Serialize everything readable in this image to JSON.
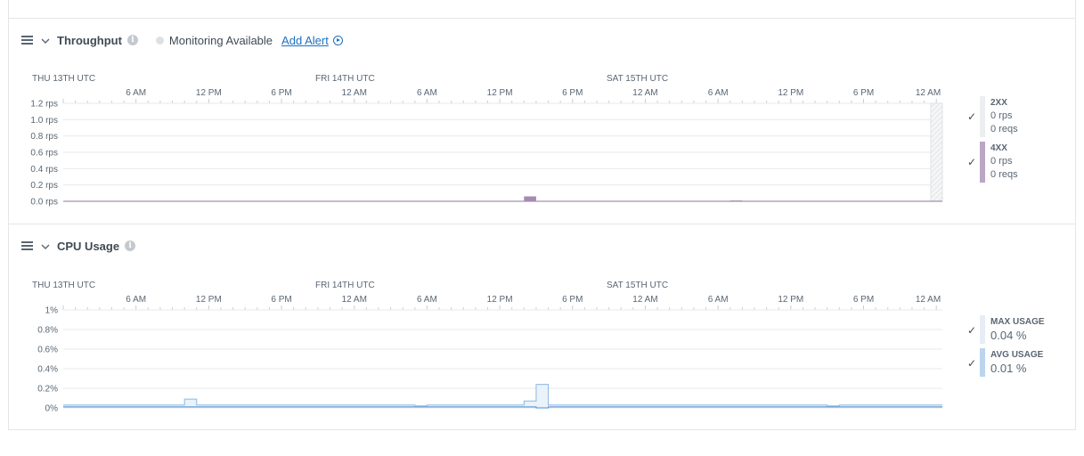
{
  "throughput": {
    "title": "Throughput",
    "monitoring_label": "Monitoring Available",
    "add_alert_label": "Add Alert",
    "legend": [
      {
        "name": "2XX",
        "rate": "0 rps",
        "reqs": "0 reqs",
        "color": "#eceef1"
      },
      {
        "name": "4XX",
        "rate": "0 rps",
        "reqs": "0 reqs",
        "color": "#bba6c4"
      }
    ]
  },
  "cpu": {
    "title": "CPU Usage",
    "legend": [
      {
        "name": "MAX USAGE",
        "value": "0.04 %",
        "color": "#e6edf5"
      },
      {
        "name": "AVG USAGE",
        "value": "0.01 %",
        "color": "#bcd5ee"
      }
    ]
  },
  "chart_data": [
    {
      "type": "bar",
      "x_day_labels": [
        "THU 13TH UTC",
        "FRI 14TH UTC",
        "SAT 15TH UTC"
      ],
      "x_time_labels": [
        "6 AM",
        "12 PM",
        "6 PM",
        "12 AM",
        "6 AM",
        "12 PM",
        "6 PM",
        "12 AM",
        "6 AM",
        "12 PM",
        "6 PM",
        "12 AM"
      ],
      "y_tick_labels": [
        "1.2 rps",
        "1.0 rps",
        "0.8 rps",
        "0.6 rps",
        "0.4 rps",
        "0.2 rps",
        "0.0 rps"
      ],
      "ylim": [
        0,
        1.2
      ],
      "series": [
        {
          "name": "2XX",
          "color": "#eceef1",
          "points": []
        },
        {
          "name": "4XX",
          "color": "#a58bb3",
          "points": [
            {
              "t": 38.5,
              "v": 0.06
            },
            {
              "t": 55.5,
              "v": 0.01
            }
          ]
        }
      ],
      "grid": true
    },
    {
      "type": "area",
      "x_day_labels": [
        "THU 13TH UTC",
        "FRI 14TH UTC",
        "SAT 15TH UTC"
      ],
      "x_time_labels": [
        "6 AM",
        "12 PM",
        "6 PM",
        "12 AM",
        "6 AM",
        "12 PM",
        "6 PM",
        "12 AM",
        "6 AM",
        "12 PM",
        "6 PM",
        "12 AM"
      ],
      "y_tick_labels": [
        "1%",
        "0.8%",
        "0.6%",
        "0.4%",
        "0.2%",
        "0%"
      ],
      "ylim": [
        0,
        1
      ],
      "series": [
        {
          "name": "MAX USAGE",
          "color": "#d8e6f4",
          "points": [
            [
              0,
              0.03
            ],
            [
              10,
              0.03
            ],
            [
              10,
              0.09
            ],
            [
              11,
              0.09
            ],
            [
              11,
              0.03
            ],
            [
              29,
              0.03
            ],
            [
              29,
              0.02
            ],
            [
              30,
              0.02
            ],
            [
              30,
              0.03
            ],
            [
              38,
              0.03
            ],
            [
              38,
              0.07
            ],
            [
              39,
              0.07
            ],
            [
              39,
              0.24
            ],
            [
              40,
              0.24
            ],
            [
              40,
              0.03
            ],
            [
              63,
              0.03
            ],
            [
              63,
              0.02
            ],
            [
              64,
              0.02
            ],
            [
              64,
              0.03
            ],
            [
              72.5,
              0.03
            ]
          ]
        },
        {
          "name": "AVG USAGE",
          "color": "#6ea2d6",
          "points": [
            [
              0,
              0.01
            ],
            [
              38,
              0.01
            ],
            [
              39,
              0.01
            ],
            [
              39,
              0.0
            ],
            [
              40,
              0.0
            ],
            [
              40,
              0.01
            ],
            [
              72.5,
              0.01
            ]
          ]
        }
      ],
      "grid": true
    }
  ]
}
